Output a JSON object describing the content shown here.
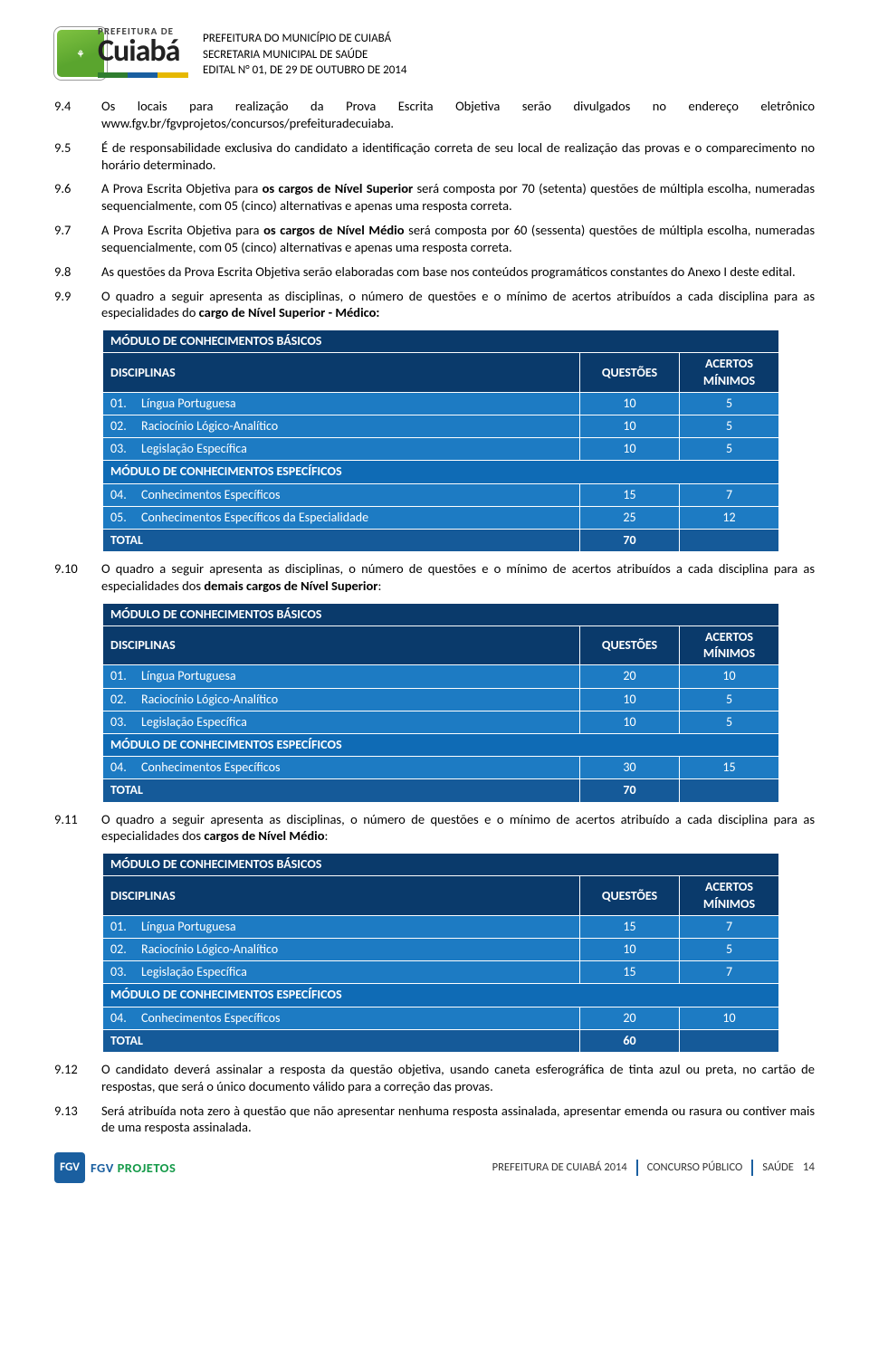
{
  "colors": {
    "header_dark": "#0a3a6b",
    "section": "#0f6bb5",
    "row": "#1d7bc3",
    "total": "#155a99",
    "text_on_blue": "#ffffff",
    "brand_green": "#159a49",
    "brand_blue": "#1a5fa0"
  },
  "header": {
    "logo_small": "PREFEITURA DE",
    "logo_big": "Cuiabá",
    "line1": "PREFEITURA DO MUNICÍPIO DE CUIABÁ",
    "line2": "SECRETARIA MUNICIPAL DE SAÚDE",
    "line3": "EDITAL N° 01, DE 29 DE OUTUBRO DE 2014"
  },
  "items": [
    {
      "num": "9.4",
      "text": "Os locais para realização da Prova Escrita Objetiva serão divulgados no endereço eletrônico www.fgv.br/fgvprojetos/concursos/prefeituradecuiaba."
    },
    {
      "num": "9.5",
      "text": "É de responsabilidade exclusiva do candidato a identificação correta de seu local de realização das provas e o comparecimento no horário determinado."
    },
    {
      "num": "9.6",
      "pre": "A Prova Escrita Objetiva para ",
      "bold": "os cargos de Nível Superior",
      "post": " será composta por 70 (setenta) questões de múltipla escolha, numeradas sequencialmente, com 05 (cinco) alternativas e apenas uma resposta correta."
    },
    {
      "num": "9.7",
      "pre": "A Prova Escrita Objetiva para ",
      "bold": "os cargos de Nível Médio",
      "post": " será composta por 60 (sessenta) questões de múltipla escolha, numeradas sequencialmente, com 05 (cinco) alternativas e apenas uma resposta correta."
    },
    {
      "num": "9.8",
      "text": "As questões da Prova Escrita Objetiva serão elaboradas com base nos conteúdos programáticos constantes do Anexo I deste edital."
    },
    {
      "num": "9.9",
      "pre": "O quadro a seguir apresenta as disciplinas, o número de questões e o mínimo de acertos atribuídos a cada disciplina para as especialidades do ",
      "bold": "cargo de Nível Superior - Médico:",
      "post": ""
    },
    {
      "num": "9.10",
      "pre": "O quadro a seguir apresenta as disciplinas, o número de questões e o mínimo de acertos atribuídos a cada disciplina para as especialidades dos ",
      "bold": "demais cargos de Nível Superior",
      "post": ":"
    },
    {
      "num": "9.11",
      "pre": "O quadro a seguir apresenta as disciplinas, o número de questões e o mínimo de acertos atribuído a cada disciplina para as especialidades dos ",
      "bold": "cargos de Nível Médio",
      "post": ":"
    },
    {
      "num": "9.12",
      "text": "O candidato deverá assinalar a resposta da questão objetiva, usando caneta esferográfica de tinta azul ou preta, no cartão de respostas, que será o único documento válido para a correção das provas."
    },
    {
      "num": "9.13",
      "text": "Será atribuída nota zero à questão que não apresentar nenhuma resposta assinalada, apresentar emenda ou rasura ou contiver mais de uma resposta assinalada."
    }
  ],
  "table_labels": {
    "mod_basic": "MÓDULO DE CONHECIMENTOS BÁSICOS",
    "mod_spec": "MÓDULO DE CONHECIMENTOS ESPECÍFICOS",
    "col_disc": "DISCIPLINAS",
    "col_q": "QUESTÕES",
    "col_a_l1": "ACERTOS",
    "col_a_l2": "MÍNIMOS",
    "total": "TOTAL"
  },
  "tables": {
    "t1": {
      "rows_basic": [
        {
          "n": "01.",
          "name": "Língua Portuguesa",
          "q": "10",
          "a": "5"
        },
        {
          "n": "02.",
          "name": "Raciocínio Lógico-Analítico",
          "q": "10",
          "a": "5"
        },
        {
          "n": "03.",
          "name": "Legislação Específica",
          "q": "10",
          "a": "5"
        }
      ],
      "rows_spec": [
        {
          "n": "04.",
          "name": "Conhecimentos Específicos",
          "q": "15",
          "a": "7"
        },
        {
          "n": "05.",
          "name": "Conhecimentos Específicos da Especialidade",
          "q": "25",
          "a": "12"
        }
      ],
      "total_q": "70"
    },
    "t2": {
      "rows_basic": [
        {
          "n": "01.",
          "name": "Língua Portuguesa",
          "q": "20",
          "a": "10"
        },
        {
          "n": "02.",
          "name": "Raciocínio Lógico-Analítico",
          "q": "10",
          "a": "5"
        },
        {
          "n": "03.",
          "name": "Legislação Específica",
          "q": "10",
          "a": "5"
        }
      ],
      "rows_spec": [
        {
          "n": "04.",
          "name": "Conhecimentos Específicos",
          "q": "30",
          "a": "15"
        }
      ],
      "total_q": "70"
    },
    "t3": {
      "rows_basic": [
        {
          "n": "01.",
          "name": "Língua Portuguesa",
          "q": "15",
          "a": "7"
        },
        {
          "n": "02.",
          "name": "Raciocínio Lógico-Analítico",
          "q": "10",
          "a": "5"
        },
        {
          "n": "03.",
          "name": "Legislação Específica",
          "q": "15",
          "a": "7"
        }
      ],
      "rows_spec": [
        {
          "n": "04.",
          "name": "Conhecimentos Específicos",
          "q": "20",
          "a": "10"
        }
      ],
      "total_q": "60"
    }
  },
  "footer": {
    "fgv_badge": "FGV",
    "fgv_text1": "FGV ",
    "fgv_text2": "PROJETOS",
    "right1": "PREFEITURA DE CUIABÁ 2014",
    "right2": "CONCURSO PÚBLICO",
    "right3": "SAÚDE",
    "page": "14"
  }
}
